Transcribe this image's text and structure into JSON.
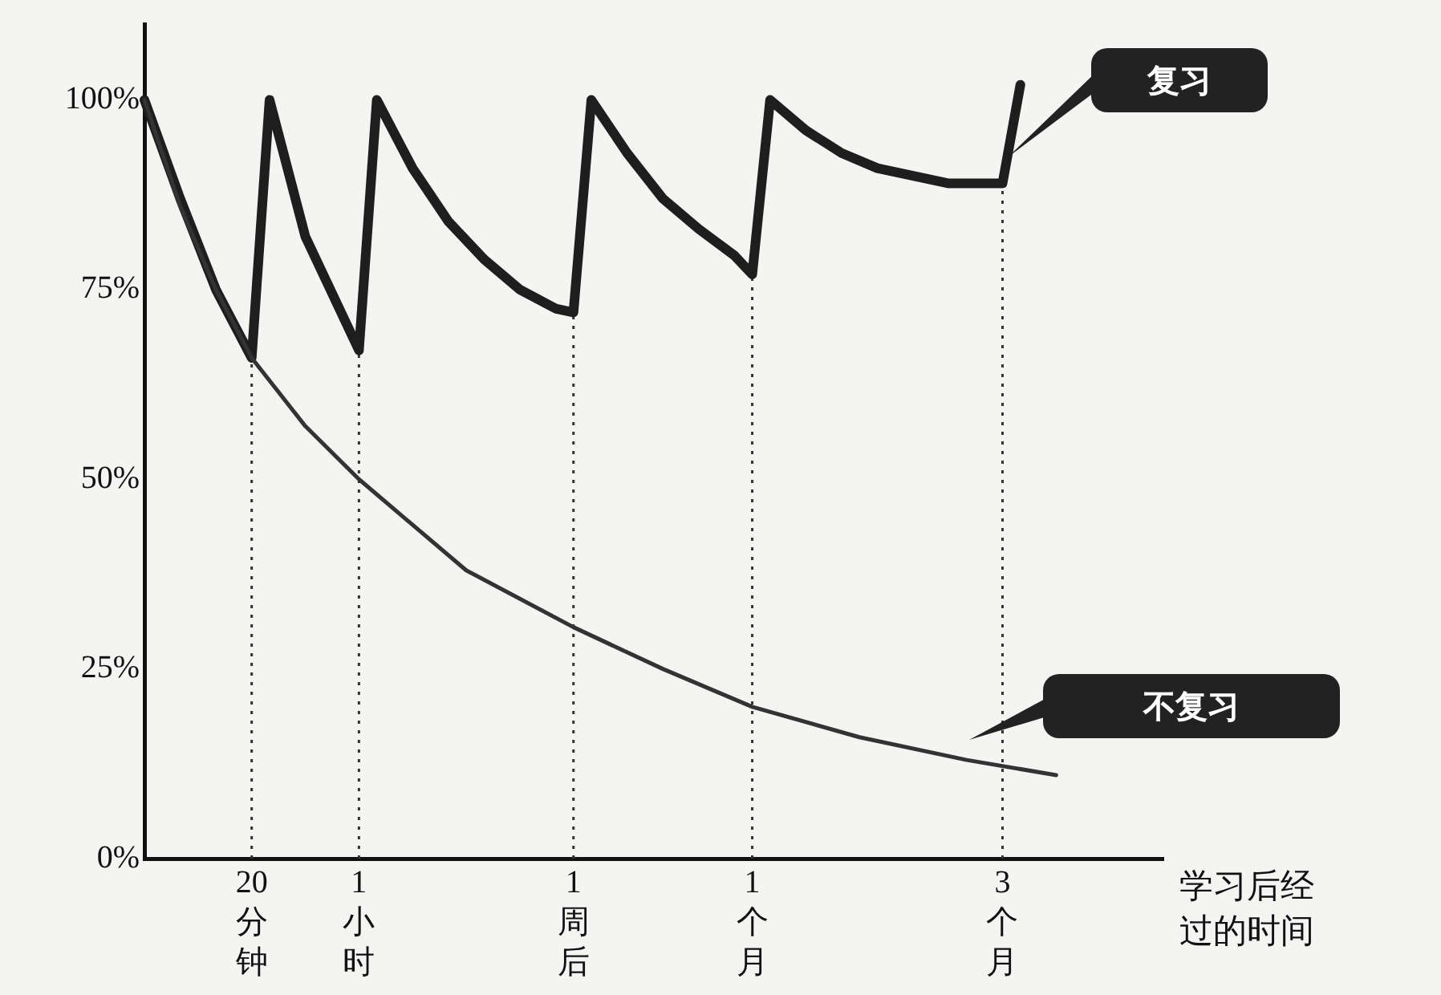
{
  "chart_data": {
    "type": "line",
    "xlabel": "学习后经过的时间",
    "categories": [
      null,
      null,
      null,
      null,
      null,
      null,
      "20分钟",
      null,
      null,
      null,
      null,
      null,
      "1小时",
      null,
      null,
      null,
      null,
      null,
      null,
      null,
      null,
      null,
      null,
      null,
      "1周后",
      null,
      null,
      null,
      null,
      null,
      null,
      null,
      null,
      null,
      "1个月",
      null,
      null,
      null,
      null,
      null,
      null,
      null,
      null,
      null,
      null,
      null,
      null,
      null,
      "3个月",
      null,
      null,
      null,
      null,
      null,
      null,
      null,
      null,
      null
    ],
    "ylim": [
      0,
      110
    ],
    "yticks": [
      {
        "value": 0,
        "label": "0%"
      },
      {
        "value": 25,
        "label": "25%"
      },
      {
        "value": 50,
        "label": "50%"
      },
      {
        "value": 75,
        "label": "75%"
      },
      {
        "value": 100,
        "label": "100%"
      }
    ],
    "series": [
      {
        "color": "#333333",
        "values": [
          100,
          null,
          86,
          null,
          75,
          null,
          66,
          null,
          null,
          57,
          null,
          null,
          50,
          null,
          null,
          null,
          null,
          null,
          38,
          null,
          null,
          null,
          null,
          null,
          30.5,
          null,
          null,
          null,
          null,
          25,
          null,
          null,
          null,
          null,
          20,
          null,
          null,
          null,
          null,
          null,
          16,
          null,
          null,
          null,
          null,
          null,
          13,
          null,
          null,
          null,
          null,
          11,
          null,
          null,
          null,
          null,
          null,
          null
        ]
      },
      {
        "color": "#1e1e1e",
        "values": [
          100,
          null,
          87,
          null,
          75,
          null,
          66,
          100,
          null,
          82,
          null,
          72,
          67,
          100,
          null,
          91,
          null,
          84,
          null,
          79,
          null,
          75,
          null,
          72.5,
          72,
          100,
          null,
          93,
          null,
          87,
          null,
          83,
          null,
          79.5,
          77,
          100,
          null,
          96,
          null,
          93,
          null,
          91,
          null,
          null,
          null,
          89,
          null,
          null,
          89,
          102,
          null,
          null,
          null,
          null,
          null,
          null,
          null,
          null
        ]
      }
    ],
    "ref_lines": [
      {
        "axis": "x",
        "value": "20分钟",
        "line_style": "dotted"
      },
      {
        "axis": "x",
        "value": "1小时",
        "line_style": "dotted"
      },
      {
        "axis": "x",
        "value": "1周后",
        "line_style": "dotted"
      },
      {
        "axis": "x",
        "value": "1个月",
        "line_style": "dotted"
      },
      {
        "axis": "x",
        "value": "3个月",
        "line_style": "dotted"
      }
    ],
    "grid": false,
    "legend": false,
    "marker": "none",
    "annotations": [
      "复习",
      "不复习"
    ]
  }
}
